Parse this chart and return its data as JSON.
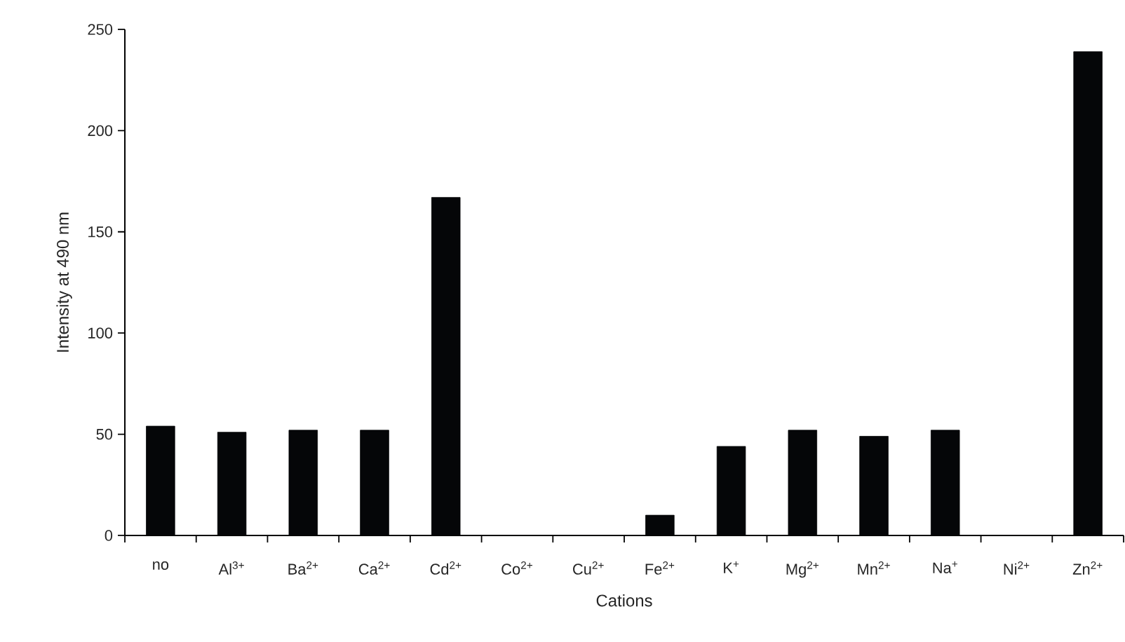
{
  "chart_data": {
    "type": "bar",
    "xlabel": "Cations",
    "ylabel": "Intensity at 490 nm",
    "categories": [
      "no",
      "Al$^{3+}$",
      "Ba$^{2+}$",
      "Ca$^{2+}$",
      "Cd$^{2+}$",
      "Co$^{2+}$",
      "Cu$^{2+}$",
      "Fe$^{2+}$",
      "K$^{+}$",
      "Mg$^{2+}$",
      "Mn$^{2+}$",
      "Na$^{+}$",
      "Ni$^{2+}$",
      "Zn$^{2+}$"
    ],
    "values": [
      54,
      51,
      52,
      52,
      167,
      0,
      0,
      10,
      44,
      52,
      49,
      52,
      0,
      239
    ],
    "color": "#050608",
    "ylim": [
      0,
      250
    ],
    "yticks": [
      0,
      50,
      100,
      150,
      200,
      250
    ]
  }
}
